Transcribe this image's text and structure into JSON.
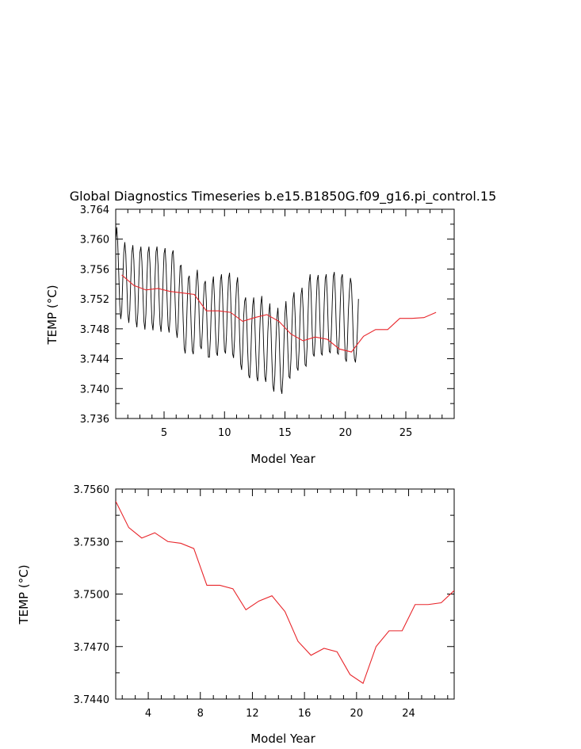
{
  "chart_data": [
    {
      "type": "line",
      "title": "Global Diagnostics Timeseries b.e15.B1850G.f09_g16.pi_control.15",
      "xlabel": "Model Year",
      "ylabel": "TEMP (°C)",
      "xlim": [
        1,
        29
      ],
      "ylim": [
        3.736,
        3.764
      ],
      "xticks": [
        5,
        10,
        15,
        20,
        25
      ],
      "xtick_labels": [
        "5",
        "10",
        "15",
        "20",
        "25"
      ],
      "yticks": [
        3.736,
        3.74,
        3.744,
        3.748,
        3.752,
        3.756,
        3.76,
        3.764
      ],
      "ytick_labels": [
        "3.736",
        "3.740",
        "3.744",
        "3.748",
        "3.752",
        "3.756",
        "3.760",
        "3.764"
      ],
      "series": [
        {
          "kind": "monthly",
          "color": "#000000",
          "x_start": 1.0,
          "x_step": 0.08333,
          "values": [
            3.7598,
            3.7616,
            3.7595,
            3.7555,
            3.7512,
            3.7493,
            3.7505,
            3.7546,
            3.7582,
            3.7596,
            3.758,
            3.754,
            3.75,
            3.7488,
            3.7505,
            3.7548,
            3.7582,
            3.7592,
            3.7572,
            3.753,
            3.7492,
            3.7482,
            3.7502,
            3.7548,
            3.7582,
            3.759,
            3.757,
            3.7528,
            3.749,
            3.7479,
            3.75,
            3.7548,
            3.7582,
            3.759,
            3.7568,
            3.7525,
            3.7488,
            3.7478,
            3.75,
            3.7548,
            3.7583,
            3.759,
            3.7566,
            3.7523,
            3.7486,
            3.7476,
            3.7498,
            3.7546,
            3.7581,
            3.7588,
            3.7564,
            3.752,
            3.7484,
            3.7475,
            3.7496,
            3.7545,
            3.758,
            3.7585,
            3.756,
            3.7516,
            3.7478,
            3.7468,
            3.7488,
            3.7534,
            3.7564,
            3.7565,
            3.7536,
            3.749,
            3.7454,
            3.7447,
            3.747,
            3.7516,
            3.7547,
            3.7551,
            3.7524,
            3.748,
            3.7451,
            3.7446,
            3.7469,
            3.7514,
            3.7546,
            3.7559,
            3.7536,
            3.749,
            3.7457,
            3.7453,
            3.7476,
            3.7516,
            3.754,
            3.7544,
            3.7516,
            3.747,
            3.7442,
            3.7442,
            3.7467,
            3.7512,
            3.754,
            3.755,
            3.7522,
            3.7478,
            3.7448,
            3.7444,
            3.7468,
            3.7514,
            3.7545,
            3.7553,
            3.7528,
            3.7484,
            3.7451,
            3.7447,
            3.7472,
            3.7516,
            3.7547,
            3.7555,
            3.7528,
            3.7482,
            3.7447,
            3.7441,
            3.7466,
            3.7511,
            3.754,
            3.7549,
            3.752,
            3.747,
            3.7433,
            3.7425,
            3.7448,
            3.7496,
            3.7517,
            3.7522,
            3.7494,
            3.7451,
            3.7418,
            3.7414,
            3.7438,
            3.7484,
            3.7512,
            3.7522,
            3.7494,
            3.745,
            3.7416,
            3.741,
            3.7434,
            3.7478,
            3.7512,
            3.7524,
            3.7496,
            3.745,
            3.7416,
            3.7409,
            3.743,
            3.7476,
            3.75,
            3.7514,
            3.7486,
            3.744,
            3.7404,
            3.7396,
            3.7418,
            3.7462,
            3.7495,
            3.7508,
            3.7482,
            3.7436,
            3.74,
            3.7393,
            3.7416,
            3.7462,
            3.75,
            3.7517,
            3.7492,
            3.7448,
            3.7416,
            3.7414,
            3.744,
            3.7486,
            3.752,
            3.7529,
            3.7502,
            3.7458,
            3.7428,
            3.7424,
            3.745,
            3.7496,
            3.7526,
            3.7535,
            3.7508,
            3.7462,
            3.7432,
            3.743,
            3.7456,
            3.7503,
            3.7542,
            3.7553,
            3.7526,
            3.7478,
            3.7446,
            3.7443,
            3.7466,
            3.7512,
            3.7545,
            3.7552,
            3.7524,
            3.7478,
            3.7447,
            3.7445,
            3.747,
            3.7515,
            3.7547,
            3.7553,
            3.7526,
            3.748,
            3.745,
            3.7448,
            3.7472,
            3.7516,
            3.755,
            3.7556,
            3.7528,
            3.748,
            3.7448,
            3.7446,
            3.747,
            3.7516,
            3.7548,
            3.7553,
            3.7524,
            3.7474,
            3.744,
            3.7436,
            3.746,
            3.7505,
            3.753,
            3.7548,
            3.754,
            3.7505,
            3.746,
            3.744,
            3.7435,
            3.745,
            3.748,
            3.752
          ]
        },
        {
          "kind": "annual",
          "color": "#e8262b",
          "x": [
            1.5,
            2.5,
            3.5,
            4.5,
            5.5,
            6.5,
            7.5,
            8.5,
            9.5,
            10.5,
            11.5,
            12.5,
            13.5,
            14.5,
            15.5,
            16.5,
            17.5,
            18.5,
            19.5,
            20.5,
            21.5,
            22.5,
            23.5,
            24.5,
            25.5,
            26.5,
            27.5
          ],
          "values": [
            3.7552,
            3.7538,
            3.7532,
            3.7534,
            3.753,
            3.7528,
            3.7526,
            3.7504,
            3.7504,
            3.7502,
            3.749,
            3.7495,
            3.7499,
            3.749,
            3.7473,
            3.7464,
            3.7469,
            3.7466,
            3.7453,
            3.7449,
            3.747,
            3.7479,
            3.7479,
            3.7494,
            3.7494,
            3.7495,
            3.7502
          ]
        }
      ]
    },
    {
      "type": "line",
      "title": "",
      "xlabel": "Model Year",
      "ylabel": "TEMP (°C)",
      "xlim": [
        1.5,
        27.5
      ],
      "ylim": [
        3.744,
        3.756
      ],
      "xticks": [
        4,
        8,
        12,
        16,
        20,
        24
      ],
      "xtick_labels": [
        "4",
        "8",
        "12",
        "16",
        "20",
        "24"
      ],
      "yticks": [
        3.744,
        3.747,
        3.75,
        3.753,
        3.756
      ],
      "ytick_labels": [
        "3.7440",
        "3.7470",
        "3.7500",
        "3.7530",
        "3.7560"
      ],
      "series": [
        {
          "kind": "annual",
          "color": "#e8262b",
          "x": [
            1.5,
            2.5,
            3.5,
            4.5,
            5.5,
            6.5,
            7.5,
            8.5,
            9.5,
            10.5,
            11.5,
            12.5,
            13.5,
            14.5,
            15.5,
            16.5,
            17.5,
            18.5,
            19.5,
            20.5,
            21.5,
            22.5,
            23.5,
            24.5,
            25.5,
            26.5,
            27.5
          ],
          "values": [
            3.7553,
            3.7538,
            3.7532,
            3.7535,
            3.753,
            3.7529,
            3.7526,
            3.7505,
            3.7505,
            3.7503,
            3.7491,
            3.7496,
            3.7499,
            3.749,
            3.7473,
            3.7465,
            3.7469,
            3.7467,
            3.7454,
            3.7449,
            3.747,
            3.7479,
            3.7479,
            3.7494,
            3.7494,
            3.7495,
            3.7502
          ]
        }
      ]
    }
  ]
}
